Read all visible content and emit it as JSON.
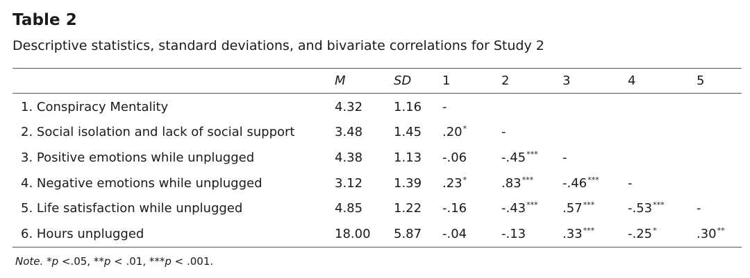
{
  "table_label": "Table 2",
  "caption": "Descriptive statistics, standard deviations, and bivariate correlations for Study 2",
  "headers": {
    "m": "M",
    "sd": "SD",
    "c1": "1",
    "c2": "2",
    "c3": "3",
    "c4": "4",
    "c5": "5"
  },
  "rows": [
    {
      "label": "1. Conspiracy Mentality",
      "m": "4.32",
      "sd": "1.16",
      "c1": "-",
      "c1s": "",
      "c2": "",
      "c2s": "",
      "c3": "",
      "c3s": "",
      "c4": "",
      "c4s": "",
      "c5": "",
      "c5s": ""
    },
    {
      "label": "2. Social isolation and lack of social support",
      "m": "3.48",
      "sd": "1.45",
      "c1": ".20",
      "c1s": "*",
      "c2": "-",
      "c2s": "",
      "c3": "",
      "c3s": "",
      "c4": "",
      "c4s": "",
      "c5": "",
      "c5s": ""
    },
    {
      "label": "3. Positive emotions while unplugged",
      "m": "4.38",
      "sd": "1.13",
      "c1": "-.06",
      "c1s": "",
      "c2": "-.45",
      "c2s": "***",
      "c3": "-",
      "c3s": "",
      "c4": "",
      "c4s": "",
      "c5": "",
      "c5s": ""
    },
    {
      "label": "4. Negative emotions while unplugged",
      "m": "3.12",
      "sd": "1.39",
      "c1": ".23",
      "c1s": "*",
      "c2": ".83",
      "c2s": "***",
      "c3": "-.46",
      "c3s": "***",
      "c4": "-",
      "c4s": "",
      "c5": "",
      "c5s": ""
    },
    {
      "label": "5. Life satisfaction while unplugged",
      "m": "4.85",
      "sd": "1.22",
      "c1": "-.16",
      "c1s": "",
      "c2": "-.43",
      "c2s": "***",
      "c3": ".57",
      "c3s": "***",
      "c4": "-.53",
      "c4s": "***",
      "c5": "-",
      "c5s": ""
    },
    {
      "label": "6. Hours unplugged",
      "m": "18.00",
      "sd": "5.87",
      "c1": "-.04",
      "c1s": "",
      "c2": "-.13",
      "c2s": "",
      "c3": ".33",
      "c3s": "***",
      "c4": "-.25",
      "c4s": "*",
      "c5": ".30",
      "c5s": "**"
    }
  ],
  "note": {
    "lead": "Note.",
    "p1_sym": "*",
    "p1_var": "p",
    "p1_rest": " <.05, ",
    "p2_sym": "**",
    "p2_var": "p",
    "p2_rest": " < .01, ",
    "p3_sym": "***",
    "p3_var": "p",
    "p3_rest": " < .001."
  }
}
